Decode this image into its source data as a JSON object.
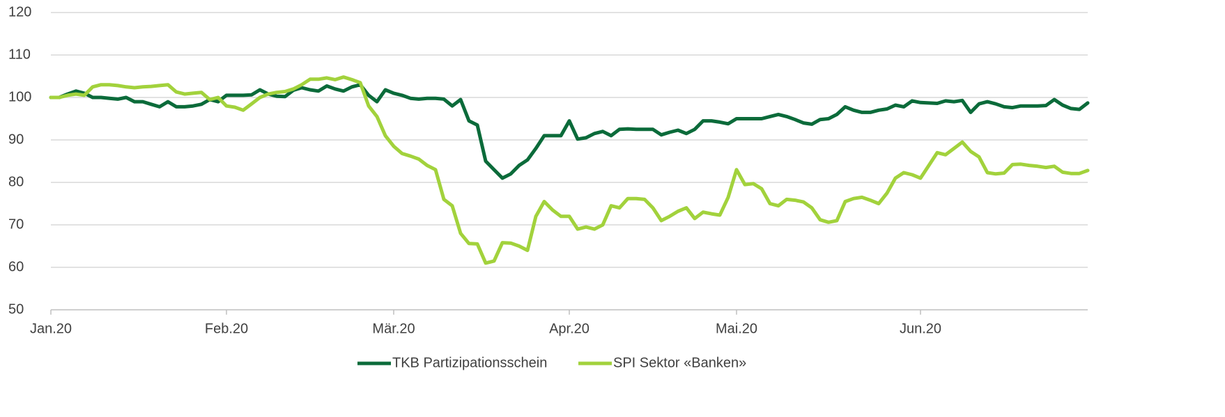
{
  "chart_data": {
    "type": "line",
    "categories": [
      "Jan.20",
      null,
      null,
      null,
      null,
      null,
      null,
      null,
      null,
      null,
      null,
      null,
      null,
      null,
      null,
      null,
      null,
      null,
      null,
      null,
      null,
      "Feb.20",
      null,
      null,
      null,
      null,
      null,
      null,
      null,
      null,
      null,
      null,
      null,
      null,
      null,
      null,
      null,
      null,
      null,
      null,
      null,
      "Mär.20",
      null,
      null,
      null,
      null,
      null,
      null,
      null,
      null,
      null,
      null,
      null,
      null,
      null,
      null,
      null,
      null,
      null,
      null,
      null,
      null,
      "Apr.20",
      null,
      null,
      null,
      null,
      null,
      null,
      null,
      null,
      null,
      null,
      null,
      null,
      null,
      null,
      null,
      null,
      null,
      null,
      null,
      "Mai.20",
      null,
      null,
      null,
      null,
      null,
      null,
      null,
      null,
      null,
      null,
      null,
      null,
      null,
      null,
      null,
      null,
      null,
      null,
      null,
      null,
      null,
      "Jun.20",
      null,
      null,
      null,
      null,
      null,
      null,
      null,
      null,
      null,
      null,
      null,
      null,
      null,
      null,
      null,
      null,
      null,
      null,
      null,
      null
    ],
    "series": [
      {
        "name": "TKB Partizipationsschein",
        "color": "#0b6b3a",
        "values": [
          100,
          100,
          100.8,
          101.5,
          101,
          100,
          100,
          99.8,
          99.6,
          100,
          99,
          99,
          98.4,
          97.8,
          99,
          97.8,
          97.8,
          98,
          98.4,
          99.5,
          99,
          100.5,
          100.5,
          100.5,
          100.6,
          101.8,
          100.8,
          100.3,
          100.2,
          101.7,
          102.3,
          101.8,
          101.5,
          102.7,
          102,
          101.5,
          102.5,
          103,
          100.5,
          99,
          101.8,
          101,
          100.5,
          99.8,
          99.6,
          99.8,
          99.8,
          99.6,
          98,
          99.5,
          94.5,
          93.5,
          85,
          83,
          81,
          82,
          84,
          85.3,
          88,
          91,
          91,
          91,
          94.5,
          90.2,
          90.5,
          91.5,
          92,
          91,
          92.5,
          92.6,
          92.5,
          92.5,
          92.5,
          91.2,
          91.8,
          92.3,
          91.5,
          92.5,
          94.5,
          94.5,
          94.2,
          93.8,
          95,
          95,
          95,
          95,
          95.5,
          96,
          95.5,
          94.8,
          94,
          93.7,
          94.8,
          95,
          96,
          97.8,
          97,
          96.5,
          96.5,
          97,
          97.3,
          98.2,
          97.8,
          99.2,
          98.8,
          98.7,
          98.6,
          99.2,
          99,
          99.3,
          96.5,
          98.5,
          99,
          98.5,
          97.8,
          97.6,
          98,
          98,
          98,
          98.1,
          99.5,
          98.2,
          97.4,
          97.2,
          98.7
        ]
      },
      {
        "name": "SPI Sektor «Banken»",
        "color": "#a2d23c",
        "values": [
          100,
          100,
          100.5,
          100.8,
          100.5,
          102.5,
          103,
          103,
          102.8,
          102.5,
          102.3,
          102.5,
          102.6,
          102.8,
          103,
          101.3,
          100.8,
          101,
          101.2,
          99.5,
          100,
          98,
          97.7,
          97,
          98.5,
          100,
          100.8,
          101.2,
          101.4,
          102,
          103,
          104.3,
          104.3,
          104.6,
          104.2,
          104.8,
          104.2,
          103.5,
          98,
          95.5,
          91,
          88.5,
          86.8,
          86.2,
          85.5,
          84,
          83,
          76,
          74.5,
          68,
          65.6,
          65.5,
          61,
          61.5,
          65.8,
          65.7,
          65,
          64,
          72,
          75.5,
          73.5,
          72,
          72,
          69,
          69.5,
          69,
          70,
          74.5,
          74,
          76.2,
          76.2,
          76,
          74,
          71,
          72,
          73.2,
          74,
          71.5,
          73,
          72.6,
          72.3,
          76.5,
          83,
          79.5,
          79.7,
          78.5,
          75,
          74.5,
          76,
          75.8,
          75.4,
          74,
          71.2,
          70.6,
          71,
          75.5,
          76.2,
          76.5,
          75.8,
          75,
          77.5,
          81,
          82.3,
          81.8,
          81,
          84,
          87,
          86.5,
          88,
          89.5,
          87.3,
          86,
          82.3,
          82,
          82.2,
          84.2,
          84.3,
          84,
          83.8,
          83.5,
          83.8,
          82.4,
          82.1,
          82.1,
          82.8
        ]
      }
    ],
    "ylim": [
      50,
      120
    ],
    "yticks": [
      50,
      60,
      70,
      80,
      90,
      100,
      110,
      120
    ],
    "grid": true,
    "legend": "bottom"
  }
}
